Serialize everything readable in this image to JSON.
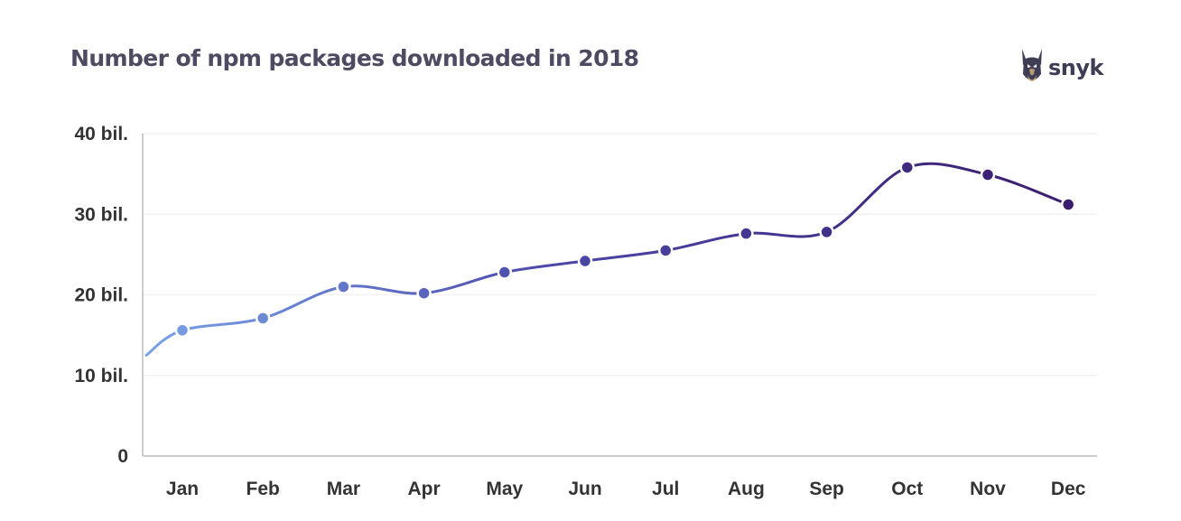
{
  "brand": {
    "name": "snyk",
    "icon": "doberman-dog-icon",
    "color": "#3f3d56"
  },
  "chart_data": {
    "type": "line",
    "title": "Number of npm packages downloaded in 2018",
    "xlabel": "",
    "ylabel": "",
    "categories": [
      "Jan",
      "Feb",
      "Mar",
      "Apr",
      "May",
      "Jun",
      "Jul",
      "Aug",
      "Sep",
      "Oct",
      "Nov",
      "Dec"
    ],
    "series": [
      {
        "values": [
          15.6,
          17.1,
          21.0,
          20.2,
          22.8,
          24.2,
          25.5,
          27.6,
          27.8,
          35.8,
          34.9,
          31.2
        ],
        "lead_in_value": 12.5
      }
    ],
    "y_ticks": [
      {
        "value": 0,
        "label": "0"
      },
      {
        "value": 10,
        "label": "10 bil."
      },
      {
        "value": 20,
        "label": "20 bil."
      },
      {
        "value": 30,
        "label": "30 bil."
      },
      {
        "value": 40,
        "label": "40 bil."
      }
    ],
    "ylim": [
      0,
      40
    ],
    "grid": true,
    "legend": "none",
    "colors": {
      "start": "#7aa3e8",
      "mid": "#4a47a8",
      "end": "#3b1d6e",
      "grid": "#f2f2f2",
      "axis": "#cccccc"
    }
  }
}
